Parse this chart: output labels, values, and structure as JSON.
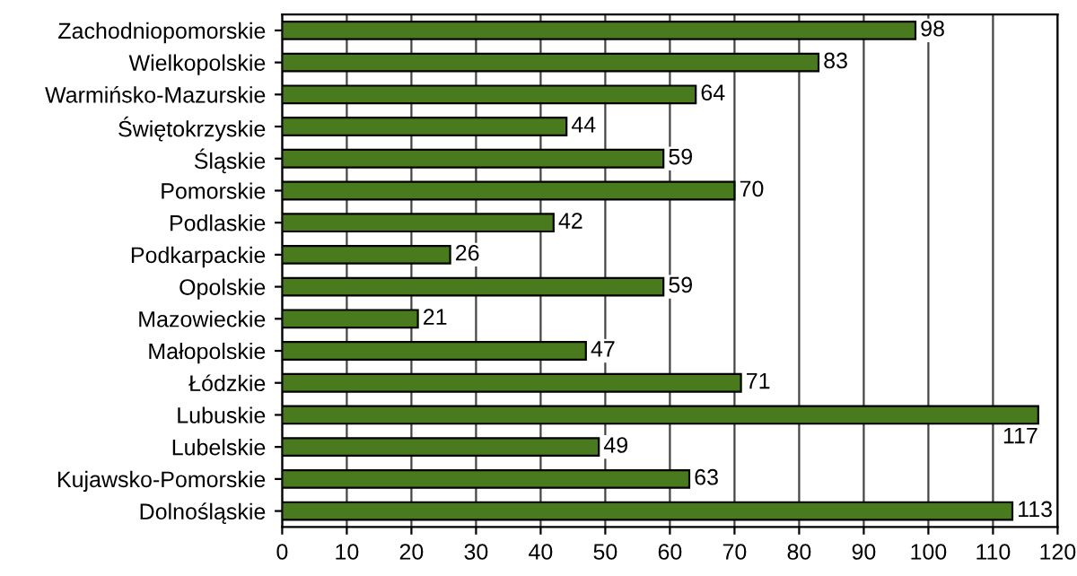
{
  "chart_data": {
    "type": "bar",
    "orientation": "horizontal",
    "categories": [
      "Zachodniopomorskie",
      "Wielkopolskie",
      "Warmińsko-Mazurskie",
      "Świętokrzyskie",
      "Śląskie",
      "Pomorskie",
      "Podlaskie",
      "Podkarpackie",
      "Opolskie",
      "Mazowieckie",
      "Małopolskie",
      "Łódzkie",
      "Lubuskie",
      "Lubelskie",
      "Kujawsko-Pomorskie",
      "Dolnośląskie"
    ],
    "values": [
      98,
      83,
      64,
      44,
      59,
      70,
      42,
      26,
      59,
      21,
      47,
      71,
      117,
      49,
      63,
      113
    ],
    "color": "#4a7a1e",
    "data_labels": true,
    "grid": "x",
    "xlim": [
      0,
      120
    ],
    "xticks": [
      0,
      10,
      20,
      30,
      40,
      50,
      60,
      70,
      80,
      90,
      100,
      110,
      120
    ]
  }
}
